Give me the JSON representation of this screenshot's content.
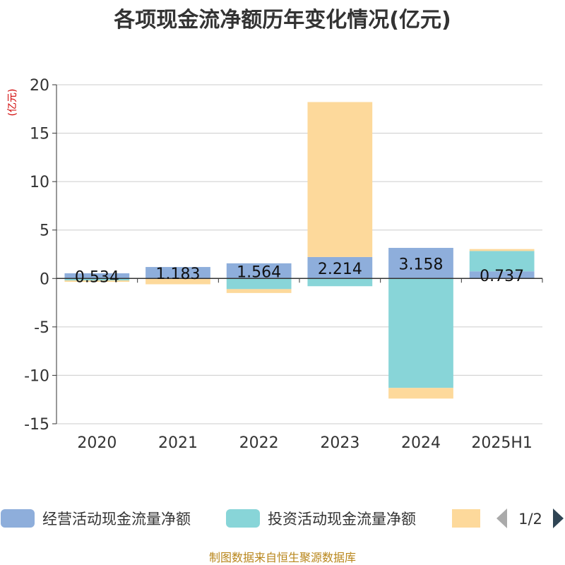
{
  "chart_data": {
    "type": "bar",
    "stacked": true,
    "title": "各项现金流净额历年变化情况(亿元)",
    "ylabel": "(亿元)",
    "xlabel": "",
    "categories": [
      "2020",
      "2021",
      "2022",
      "2023",
      "2024",
      "2025H1"
    ],
    "ylim": [
      -15,
      20
    ],
    "yticks": [
      20,
      15,
      10,
      5,
      0,
      -5,
      -10,
      -15
    ],
    "grid": true,
    "series": [
      {
        "name": "经营活动现金流量净额",
        "color": "#8eaedb",
        "values": [
          0.534,
          1.183,
          1.564,
          2.214,
          3.158,
          0.737
        ],
        "labels": [
          "0.534",
          "1.183",
          "1.564",
          "2.214",
          "3.158",
          "0.737"
        ]
      },
      {
        "name": "投资活动现金流量净额",
        "color": "#88d5d8",
        "values": [
          -0.2,
          -0.05,
          -1.1,
          -0.8,
          -11.3,
          2.1
        ]
      },
      {
        "color": "#fdd99b",
        "values": [
          -0.15,
          -0.55,
          -0.4,
          16.0,
          -1.1,
          0.2
        ]
      }
    ],
    "legend": {
      "position": "bottom",
      "page": "1/2"
    }
  },
  "source": "制图数据来自恒生聚源数据库"
}
